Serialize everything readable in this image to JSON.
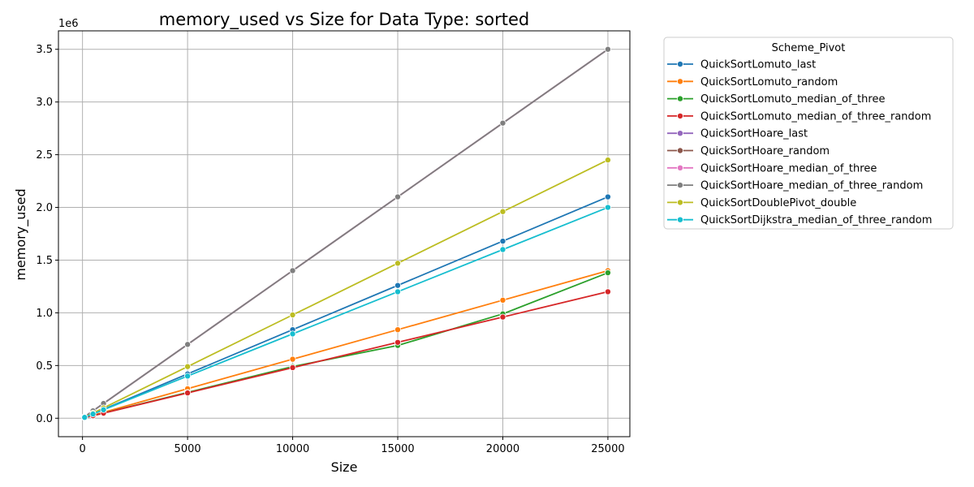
{
  "chart_data": {
    "type": "line",
    "title": "memory_used vs Size for Data Type: sorted",
    "xlabel": "Size",
    "ylabel": "memory_used",
    "y_offset_label": "1e6",
    "xlim": [
      -1145,
      26045
    ],
    "ylim": [
      -175000,
      3675000
    ],
    "x_ticks": [
      0,
      5000,
      10000,
      15000,
      20000,
      25000
    ],
    "x_tick_labels": [
      "0",
      "5000",
      "10000",
      "15000",
      "20000",
      "25000"
    ],
    "y_ticks": [
      0,
      500000,
      1000000,
      1500000,
      2000000,
      2500000,
      3000000,
      3500000
    ],
    "y_tick_labels": [
      "0.0",
      "0.5",
      "1.0",
      "1.5",
      "2.0",
      "2.5",
      "3.0",
      "3.5"
    ],
    "grid": true,
    "legend_title": "Scheme_Pivot",
    "legend_position": "outside-right-top",
    "x": [
      100,
      500,
      1000,
      5000,
      10000,
      15000,
      20000,
      25000
    ],
    "series": [
      {
        "name": "QuickSortLomuto_last",
        "color": "#1f77b4",
        "values": [
          8400,
          42000,
          84000,
          420000,
          840000,
          1260000,
          1680000,
          2100000
        ]
      },
      {
        "name": "QuickSortLomuto_random",
        "color": "#ff7f0e",
        "values": [
          5600,
          28000,
          56000,
          280000,
          560000,
          840000,
          1120000,
          1400000
        ]
      },
      {
        "name": "QuickSortLomuto_median_of_three",
        "color": "#2ca02c",
        "values": [
          4800,
          24000,
          49000,
          245000,
          490000,
          690000,
          990000,
          1380000
        ]
      },
      {
        "name": "QuickSortLomuto_median_of_three_random",
        "color": "#d62728",
        "values": [
          4800,
          24000,
          48000,
          240000,
          480000,
          720000,
          960000,
          1200000
        ]
      },
      {
        "name": "QuickSortHoare_last",
        "color": "#9467bd",
        "values": [
          14000,
          70000,
          140000,
          700000,
          1400000,
          2100000,
          2800000,
          3500000
        ]
      },
      {
        "name": "QuickSortHoare_random",
        "color": "#8c564b",
        "values": [
          14000,
          70000,
          140000,
          700000,
          1400000,
          2100000,
          2800000,
          3500000
        ]
      },
      {
        "name": "QuickSortHoare_median_of_three",
        "color": "#e377c2",
        "values": [
          14000,
          70000,
          140000,
          700000,
          1400000,
          2100000,
          2800000,
          3500000
        ]
      },
      {
        "name": "QuickSortHoare_median_of_three_random",
        "color": "#7f7f7f",
        "values": [
          14000,
          70000,
          140000,
          700000,
          1400000,
          2100000,
          2800000,
          3500000
        ]
      },
      {
        "name": "QuickSortDoublePivot_double",
        "color": "#bcbd22",
        "values": [
          9800,
          49000,
          98000,
          490000,
          980000,
          1470000,
          1960000,
          2450000
        ]
      },
      {
        "name": "QuickSortDijkstra_median_of_three_random",
        "color": "#17becf",
        "values": [
          8000,
          40000,
          80000,
          400000,
          800000,
          1200000,
          1600000,
          2000000
        ]
      }
    ]
  }
}
